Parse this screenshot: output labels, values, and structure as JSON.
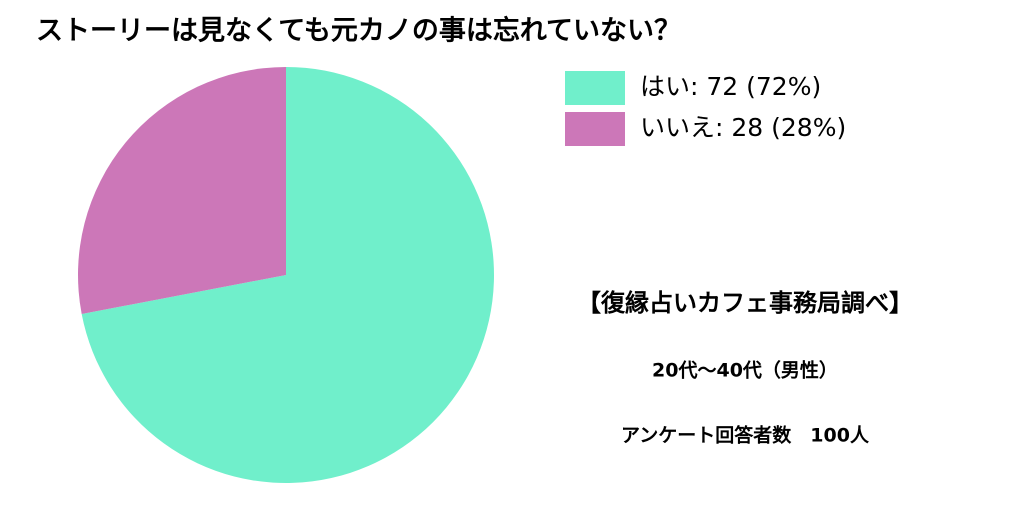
{
  "chart_data": {
    "type": "pie",
    "title": "ストーリーは見なくても元カノの事は忘れていない？",
    "categories": [
      "はい",
      "いいえ"
    ],
    "values": [
      72,
      28
    ],
    "colors": [
      "#70efcb",
      "#cc77b8"
    ],
    "legend_labels": [
      "はい: 72 (72%)",
      "いいえ: 28 (28%)"
    ],
    "annotations": [
      "【復縁占いカフェ事務局調べ】",
      "20代〜40代（男性）",
      "アンケート回答者数　100人"
    ]
  }
}
